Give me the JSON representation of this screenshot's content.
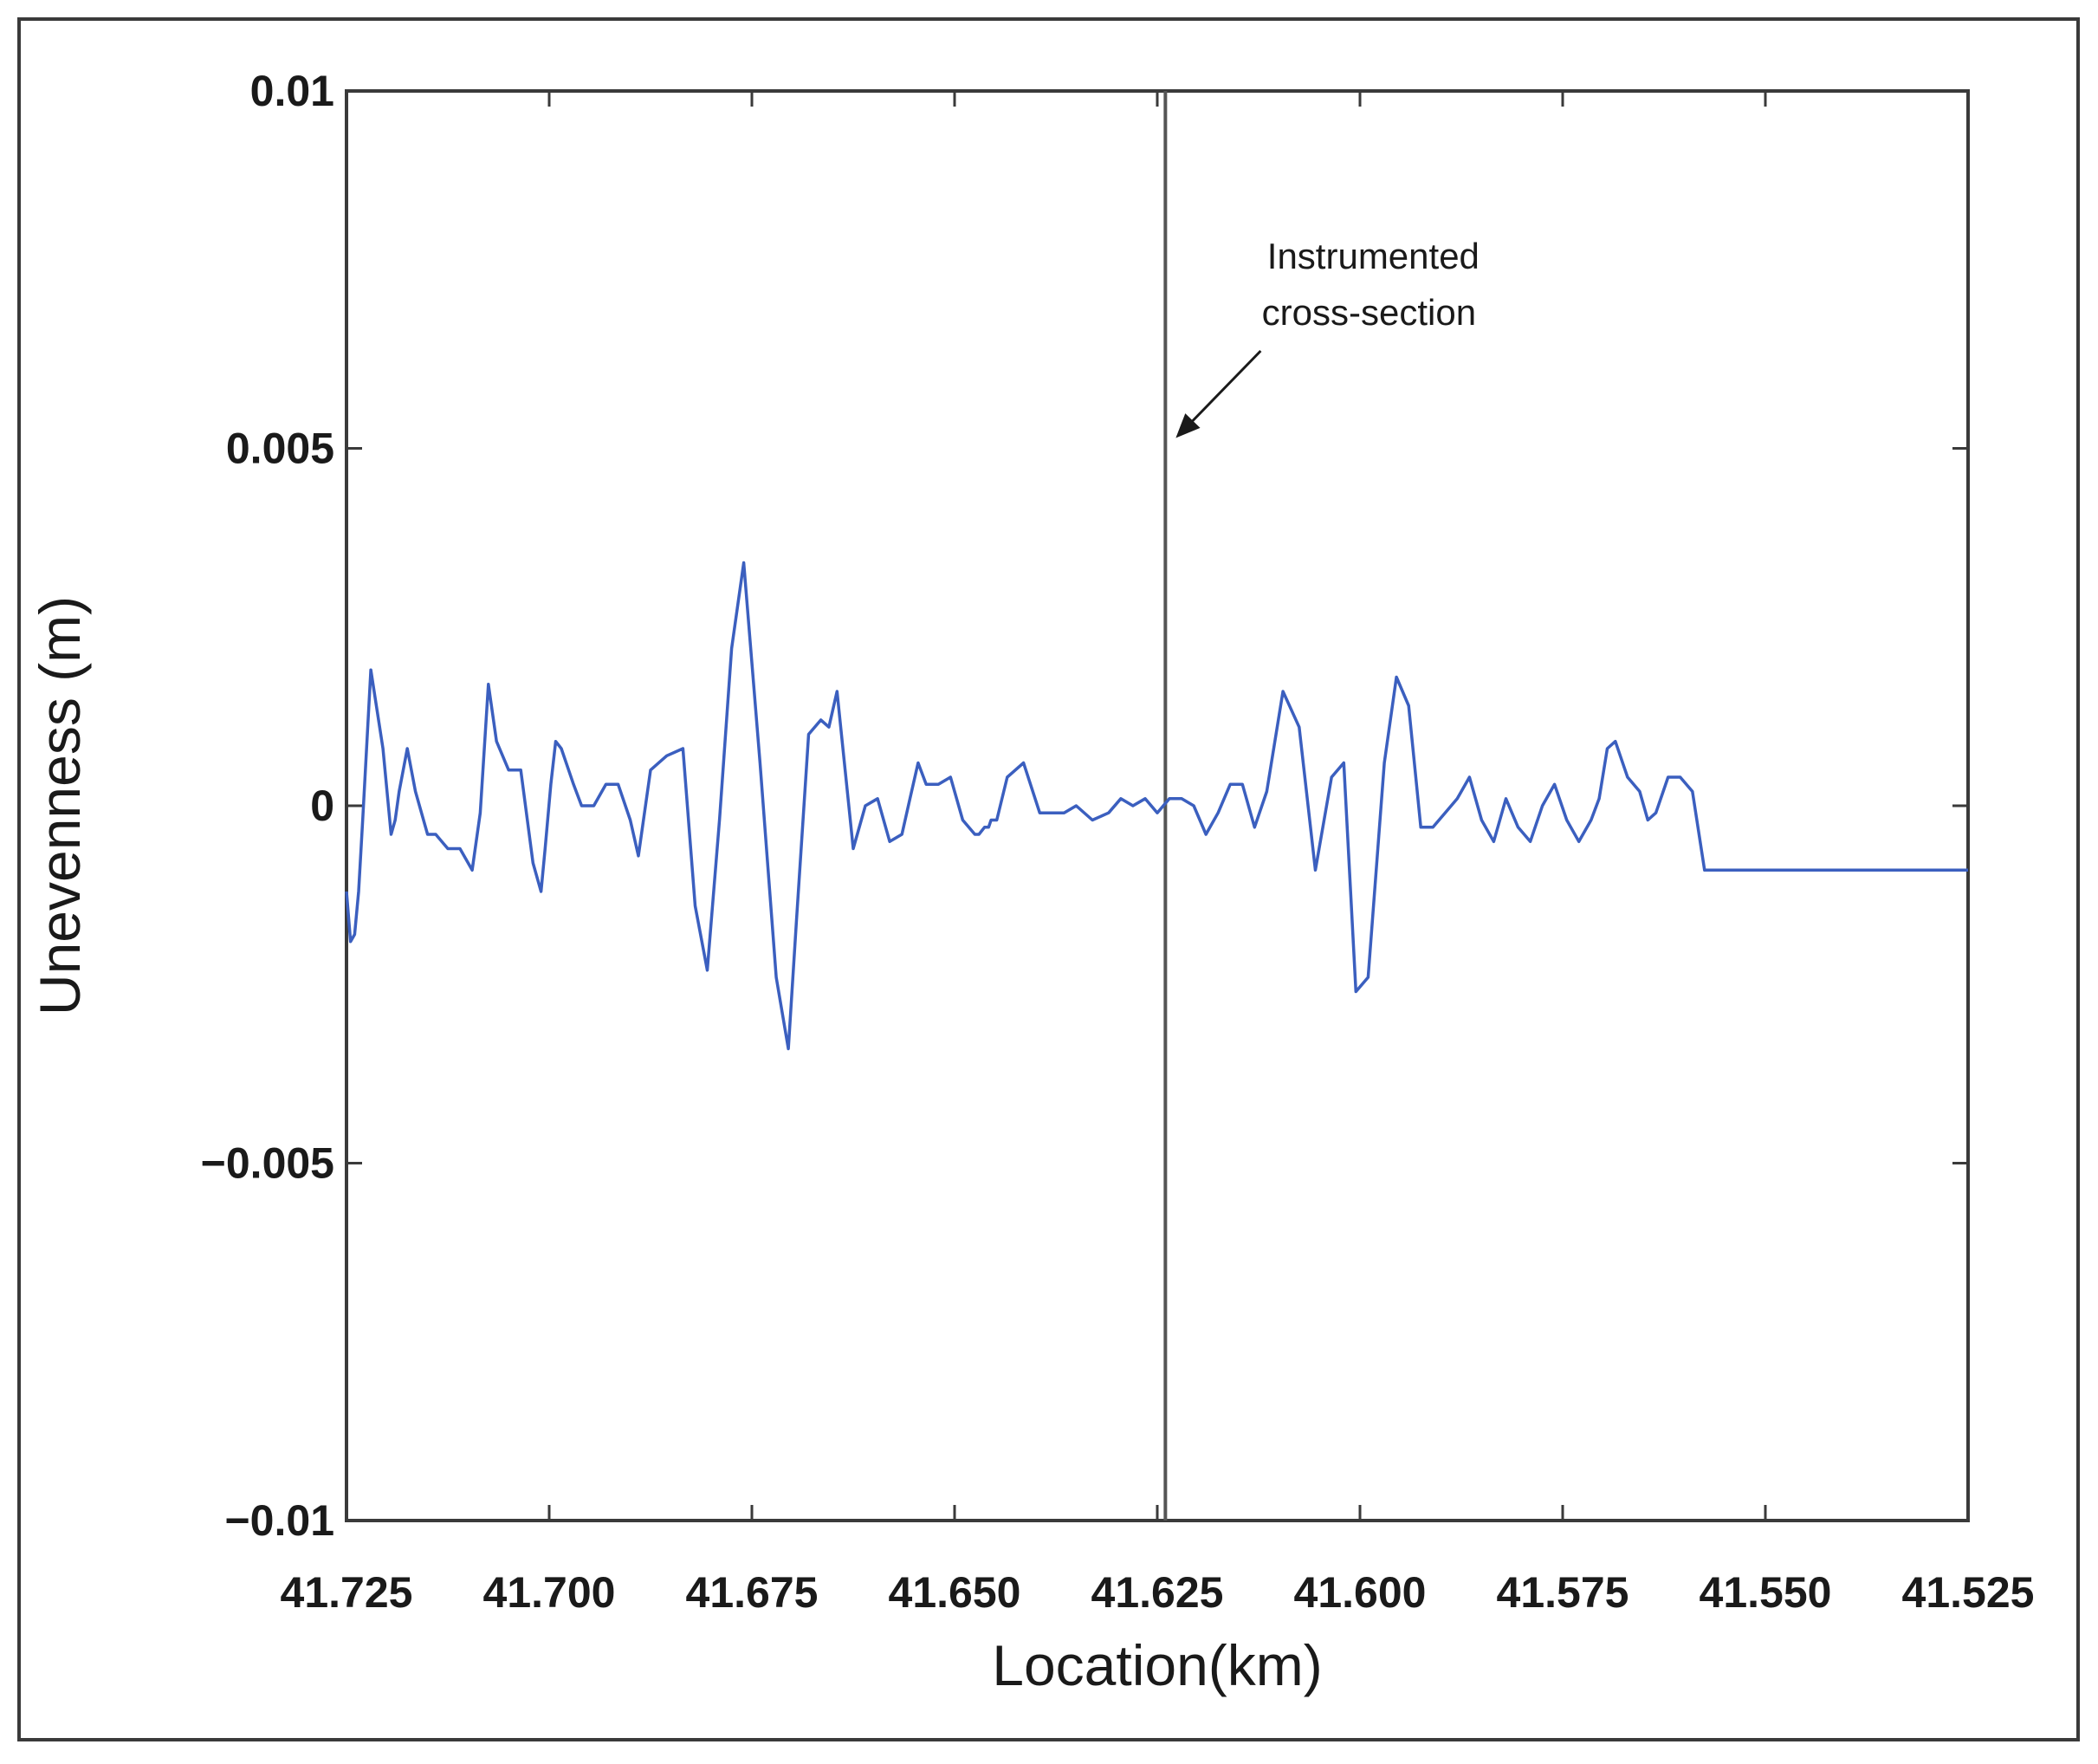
{
  "chart_data": {
    "type": "line",
    "title": "",
    "xlabel": "Location(km)",
    "ylabel": "Unevenness (m)",
    "xlim": [
      41.725,
      41.525
    ],
    "ylim": [
      -0.01,
      0.01
    ],
    "x_reversed": true,
    "x_ticks": [
      "41.725",
      "41.700",
      "41.675",
      "41.650",
      "41.625",
      "41.600",
      "41.575",
      "41.550",
      "41.525"
    ],
    "y_ticks": [
      "0.01",
      "0.005",
      "0",
      "−0.005",
      "−0.01"
    ],
    "y_tick_values": [
      0.01,
      0.005,
      0,
      -0.005,
      -0.01
    ],
    "x_tick_values": [
      41.725,
      41.7,
      41.675,
      41.65,
      41.625,
      41.6,
      41.575,
      41.55,
      41.525
    ],
    "grid": false,
    "line_color": "#3b5fbf",
    "reference_line": {
      "x": 41.624,
      "color": "#555555"
    },
    "annotation": {
      "lines": [
        "Instrumented",
        "cross-section"
      ],
      "arrow_to": {
        "x": 41.624,
        "y": 0.005
      }
    },
    "series": [
      {
        "x": [
          41.725,
          41.7245,
          41.724,
          41.7235,
          41.723,
          41.722,
          41.7205,
          41.7195,
          41.719,
          41.7185,
          41.7175,
          41.7165,
          41.715,
          41.714,
          41.7125,
          41.711,
          41.7095,
          41.7085,
          41.7075,
          41.7065,
          41.705,
          41.7035,
          41.702,
          41.701,
          41.7005,
          41.6998,
          41.6992,
          41.6985,
          41.697,
          41.696,
          41.6945,
          41.693,
          41.6915,
          41.69,
          41.689,
          41.6875,
          41.6855,
          41.6835,
          41.682,
          41.6805,
          41.679,
          41.6775,
          41.676,
          41.674,
          41.672,
          41.6705,
          41.6695,
          41.668,
          41.6665,
          41.6655,
          41.6645,
          41.6625,
          41.661,
          41.6595,
          41.658,
          41.6565,
          41.6555,
          41.6545,
          41.6535,
          41.652,
          41.6505,
          41.649,
          41.6475,
          41.647,
          41.6463,
          41.6458,
          41.6455,
          41.6448,
          41.6435,
          41.6415,
          41.6395,
          41.638,
          41.6365,
          41.635,
          41.633,
          41.631,
          41.6295,
          41.628,
          41.6265,
          41.625,
          41.6235,
          41.622,
          41.6205,
          41.619,
          41.6175,
          41.616,
          41.6145,
          41.613,
          41.6115,
          41.6095,
          41.6075,
          41.6055,
          41.6035,
          41.602,
          41.6005,
          41.599,
          41.597,
          41.5955,
          41.594,
          41.5925,
          41.591,
          41.5895,
          41.588,
          41.5865,
          41.585,
          41.5835,
          41.582,
          41.5805,
          41.579,
          41.5775,
          41.576,
          41.5745,
          41.573,
          41.5715,
          41.5705,
          41.5695,
          41.5685,
          41.567,
          41.5655,
          41.5645,
          41.5635,
          41.562,
          41.5605,
          41.559,
          41.5575,
          41.556,
          41.5545,
          41.553,
          41.5515,
          41.55,
          41.5485,
          41.547,
          41.5455,
          41.544,
          41.5425,
          41.541,
          41.5395,
          41.538,
          41.5365,
          41.535,
          41.5335,
          41.532,
          41.5305,
          41.529,
          41.5275,
          41.526,
          41.525
        ],
        "y": [
          -0.0012,
          -0.0019,
          -0.0018,
          -0.0012,
          -0.0002,
          0.0019,
          0.0008,
          -0.0004,
          -0.0002,
          0.0002,
          0.0008,
          0.0002,
          -0.0004,
          -0.0004,
          -0.0006,
          -0.0006,
          -0.0009,
          -0.0001,
          0.0017,
          0.0009,
          0.0005,
          0.0005,
          -0.0008,
          -0.0012,
          -0.0006,
          0.0003,
          0.0009,
          0.0008,
          0.0003,
          0.0,
          0.0,
          0.0003,
          0.0003,
          -0.0002,
          -0.0007,
          0.0005,
          0.0007,
          0.0008,
          -0.0014,
          -0.0023,
          -0.0002,
          0.0022,
          0.0034,
          0.0006,
          -0.0024,
          -0.0034,
          -0.0016,
          0.001,
          0.0012,
          0.0011,
          0.0016,
          -0.0006,
          0.0,
          0.0001,
          -0.0005,
          -0.0004,
          0.0001,
          0.0006,
          0.0003,
          0.0003,
          0.0004,
          -0.0002,
          -0.0004,
          -0.0004,
          -0.0003,
          -0.0003,
          -0.0002,
          -0.0002,
          0.0004,
          0.0006,
          -0.0001,
          -0.0001,
          -0.0001,
          0.0,
          -0.0002,
          -0.0001,
          0.0001,
          0.0,
          0.0001,
          -0.0001,
          0.0001,
          0.0001,
          0.0,
          -0.0004,
          -0.0001,
          0.0003,
          0.0003,
          -0.0003,
          0.0002,
          0.0016,
          0.0011,
          -0.0009,
          0.0004,
          0.0006,
          -0.0026,
          -0.0024,
          0.0006,
          0.0018,
          0.0014,
          -0.0003,
          -0.0003,
          -0.0001,
          0.0001,
          0.0004,
          -0.0002,
          -0.0005,
          0.0001,
          -0.0003,
          -0.0005,
          0.0,
          0.0003,
          -0.0002,
          -0.0005,
          -0.0002,
          0.0001,
          0.0008,
          0.0009,
          0.0004,
          0.0002,
          -0.0002,
          -0.0001,
          0.0004,
          0.0004,
          0.0002,
          -0.0009,
          -0.0009,
          -0.0009,
          -0.0009,
          -0.0009,
          -0.0009,
          -0.0009,
          -0.0009,
          -0.0009,
          -0.0009,
          -0.0009,
          -0.0009,
          -0.0009,
          -0.0009,
          -0.0009,
          -0.0009,
          -0.0009,
          -0.0009,
          -0.0009,
          -0.0009,
          -0.0009,
          -0.0009,
          -0.0009
        ]
      }
    ]
  }
}
